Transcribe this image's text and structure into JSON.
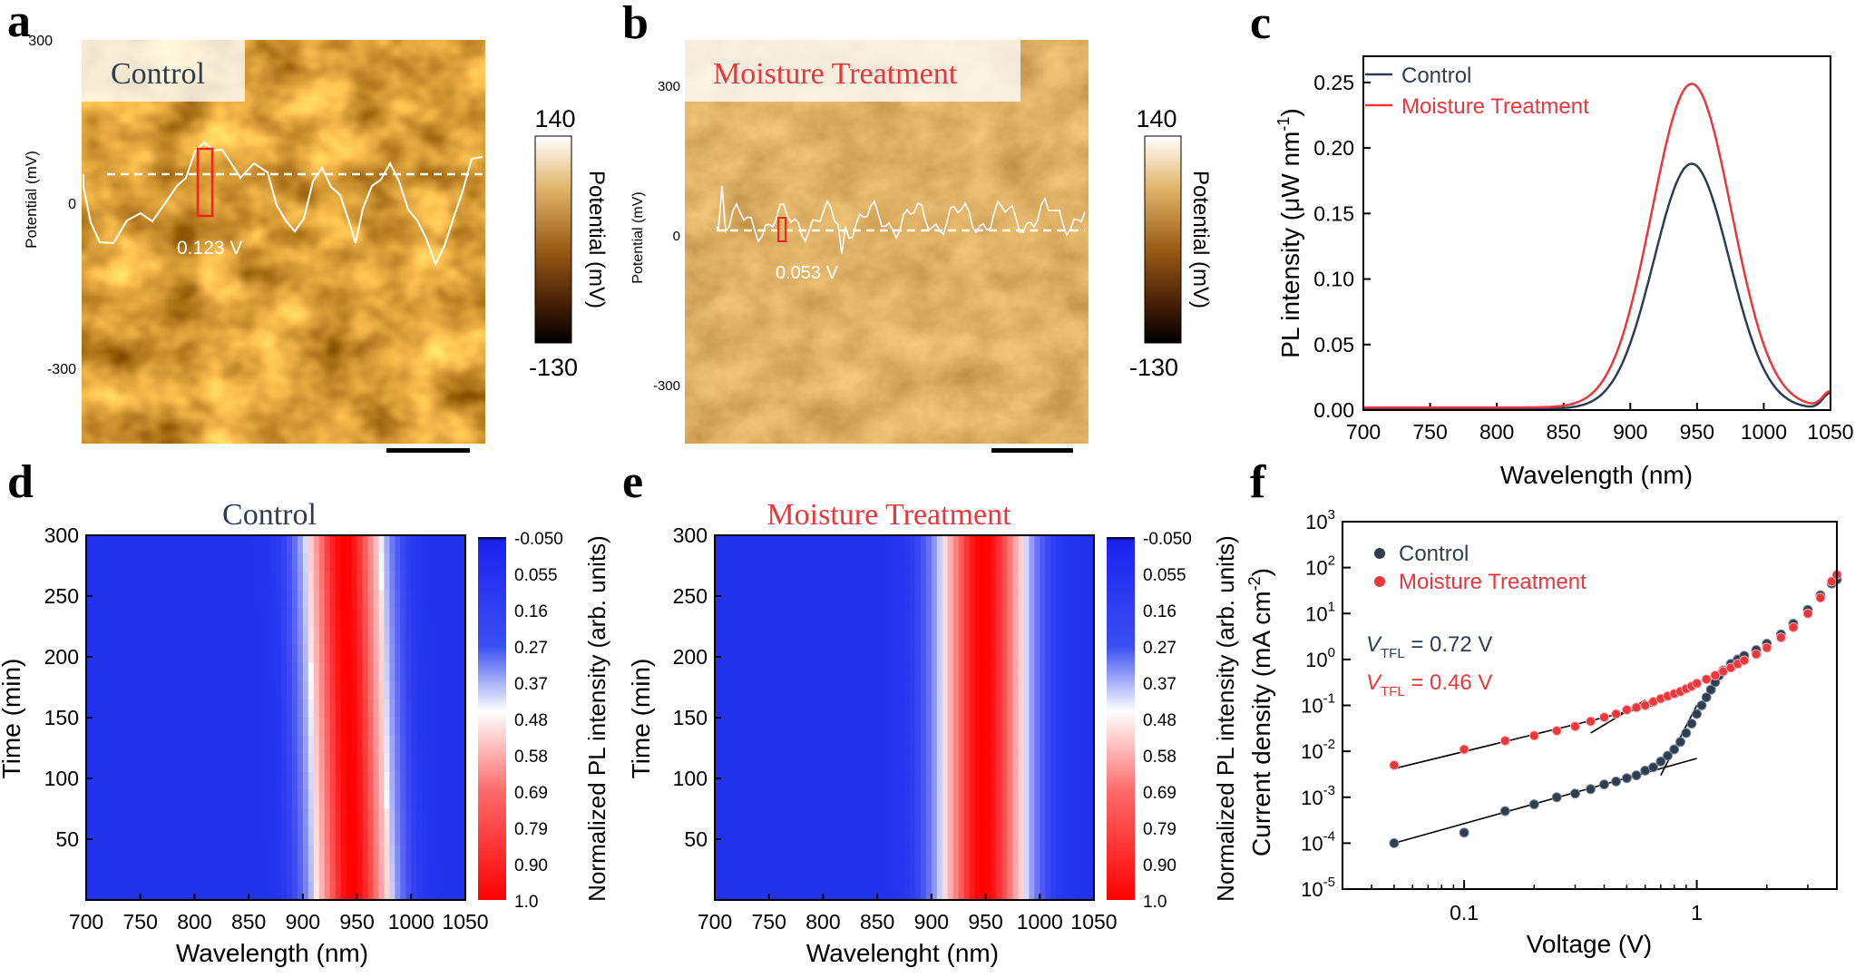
{
  "panel_labels": [
    "a",
    "b",
    "c",
    "d",
    "e",
    "f"
  ],
  "colors": {
    "control": "#2e3e50",
    "moisture": "#e8383d",
    "blue": "#2233ee",
    "red": "#ff0a0a"
  },
  "chart_data": [
    {
      "panel": "a",
      "type": "heatmap",
      "title": "Control",
      "profile_ylabel": "Potential (mV)",
      "profile_yticks": [
        "300",
        "0",
        "-300"
      ],
      "profile_step_label": "0.123 V",
      "colorbar": {
        "label": "Potential (mV)",
        "max": "140",
        "min": "-130"
      },
      "scale_bar": true
    },
    {
      "panel": "b",
      "type": "heatmap",
      "title": "Moisture Treatment",
      "profile_ylabel": "Potential (mV)",
      "profile_yticks": [
        "300",
        "0",
        "-300"
      ],
      "profile_step_label": "0.053 V",
      "colorbar": {
        "label": "Potential (mV)",
        "max": "140",
        "min": "-130"
      },
      "scale_bar": true
    },
    {
      "panel": "c",
      "type": "line",
      "xlabel": "Wavelength (nm)",
      "ylabel_main": "PL intensity (μW nm",
      "ylabel_sup": "-1",
      "ylabel_end": ")",
      "xlim": [
        700,
        1050
      ],
      "ylim": [
        0,
        0.27
      ],
      "xticks": [
        700,
        750,
        800,
        850,
        900,
        950,
        1000,
        1050
      ],
      "yticks": [
        "0.00",
        "0.05",
        "0.10",
        "0.15",
        "0.20",
        "0.25"
      ],
      "ytick_values": [
        0,
        0.05,
        0.1,
        0.15,
        0.2,
        0.25
      ],
      "legend_position": "top-left",
      "series": [
        {
          "name": "Control",
          "peak_x": 946,
          "peak_y": 0.188,
          "width": 38,
          "baseline": 0.001
        },
        {
          "name": "Moisture Treatment",
          "peak_x": 946,
          "peak_y": 0.249,
          "width": 40,
          "baseline": 0.002
        }
      ]
    },
    {
      "panel": "d",
      "type": "heatmap",
      "title": "Control",
      "xlabel": "Wavelength (nm)",
      "ylabel": "Time (min)",
      "xlim": [
        700,
        1050
      ],
      "ylim": [
        0,
        300
      ],
      "xticks": [
        "700",
        "750",
        "800",
        "850",
        "900",
        "950",
        "1000",
        "1050"
      ],
      "yticks": [
        "50",
        "100",
        "150",
        "200",
        "250",
        "300"
      ],
      "peak_center_bottom": 946,
      "peak_center_top": 938,
      "peak_width": 38,
      "colorbar": {
        "label": "Normalized PL intensity (arb. units)",
        "ticks": [
          "-0.050",
          "0.055",
          "0.16",
          "0.27",
          "0.37",
          "0.48",
          "0.58",
          "0.69",
          "0.79",
          "0.90",
          "1.0"
        ]
      }
    },
    {
      "panel": "e",
      "type": "heatmap",
      "title": "Moisture Treatment",
      "xlabel": "Wavelenght (nm)",
      "ylabel": "Time (min)",
      "xlim": [
        700,
        1050
      ],
      "ylim": [
        0,
        300
      ],
      "xticks": [
        "700",
        "750",
        "800",
        "850",
        "900",
        "950",
        "1000",
        "1050"
      ],
      "yticks": [
        "50",
        "100",
        "150",
        "200",
        "250",
        "300"
      ],
      "peak_center_bottom": 948,
      "peak_center_top": 948,
      "peak_width": 42,
      "colorbar": {
        "label": "Normalized PL intensity (arb. units)",
        "ticks": [
          "-0.050",
          "0.055",
          "0.16",
          "0.27",
          "0.37",
          "0.48",
          "0.58",
          "0.69",
          "0.79",
          "0.90",
          "1.0"
        ]
      }
    },
    {
      "panel": "f",
      "type": "scatter",
      "xlabel": "Voltage (V)",
      "ylabel_main": "Current density (mA cm",
      "ylabel_sup": "-2",
      "ylabel_end": ")",
      "xscale": "log",
      "yscale": "log",
      "xlim": [
        0.03,
        4
      ],
      "ylim": [
        1e-05,
        1000
      ],
      "xticks": [
        "0.1",
        "1"
      ],
      "xtick_values": [
        0.1,
        1
      ],
      "yticks": [
        [
          "10",
          "-5"
        ],
        [
          "10",
          "-4"
        ],
        [
          "10",
          "-3"
        ],
        [
          "10",
          "-2"
        ],
        [
          "10",
          "-1"
        ],
        [
          "10",
          "0"
        ],
        [
          "10",
          "1"
        ],
        [
          "10",
          "2"
        ],
        [
          "10",
          "3"
        ]
      ],
      "ytick_exps": [
        -5,
        -4,
        -3,
        -2,
        -1,
        0,
        1,
        2,
        3
      ],
      "legend_position": "top-left",
      "annotations": [
        {
          "v": "V",
          "sub": "TFL",
          "text": " = 0.72 V",
          "series": "Control"
        },
        {
          "v": "V",
          "sub": "TFL",
          "text": " = 0.46 V",
          "series": "Moisture Treatment"
        }
      ],
      "series": [
        {
          "name": "Control",
          "points": [
            [
              0.05,
              0.0001
            ],
            [
              0.1,
              0.00017
            ],
            [
              0.15,
              0.0005
            ],
            [
              0.2,
              0.0007
            ],
            [
              0.25,
              0.001
            ],
            [
              0.3,
              0.0012
            ],
            [
              0.35,
              0.0015
            ],
            [
              0.4,
              0.0019
            ],
            [
              0.45,
              0.0022
            ],
            [
              0.5,
              0.0026
            ],
            [
              0.55,
              0.003
            ],
            [
              0.6,
              0.0038
            ],
            [
              0.65,
              0.0045
            ],
            [
              0.7,
              0.006
            ],
            [
              0.75,
              0.008
            ],
            [
              0.8,
              0.011
            ],
            [
              0.85,
              0.016
            ],
            [
              0.9,
              0.025
            ],
            [
              0.95,
              0.04
            ],
            [
              1.0,
              0.065
            ],
            [
              1.05,
              0.1
            ],
            [
              1.1,
              0.15
            ],
            [
              1.15,
              0.22
            ],
            [
              1.2,
              0.32
            ],
            [
              1.25,
              0.45
            ],
            [
              1.3,
              0.58
            ],
            [
              1.4,
              0.8
            ],
            [
              1.5,
              1.0
            ],
            [
              1.6,
              1.2
            ],
            [
              1.8,
              1.6
            ],
            [
              2.0,
              2.2
            ],
            [
              2.3,
              3.5
            ],
            [
              2.6,
              6
            ],
            [
              3.0,
              12
            ],
            [
              3.4,
              25
            ],
            [
              3.8,
              45
            ],
            [
              4.0,
              55
            ]
          ],
          "fit_lines": [
            [
              [
                0.05,
                0.0001
              ],
              [
                1.0,
                0.007
              ]
            ],
            [
              [
                0.7,
                0.003
              ],
              [
                1.0,
                0.1
              ]
            ]
          ]
        },
        {
          "name": "Moisture Treatment",
          "points": [
            [
              0.05,
              0.005
            ],
            [
              0.1,
              0.011
            ],
            [
              0.15,
              0.017
            ],
            [
              0.2,
              0.022
            ],
            [
              0.25,
              0.028
            ],
            [
              0.3,
              0.035
            ],
            [
              0.35,
              0.045
            ],
            [
              0.4,
              0.055
            ],
            [
              0.45,
              0.065
            ],
            [
              0.5,
              0.08
            ],
            [
              0.55,
              0.09
            ],
            [
              0.6,
              0.1
            ],
            [
              0.65,
              0.12
            ],
            [
              0.7,
              0.14
            ],
            [
              0.75,
              0.16
            ],
            [
              0.8,
              0.18
            ],
            [
              0.85,
              0.2
            ],
            [
              0.9,
              0.23
            ],
            [
              0.95,
              0.26
            ],
            [
              1.0,
              0.3
            ],
            [
              1.1,
              0.37
            ],
            [
              1.2,
              0.45
            ],
            [
              1.3,
              0.55
            ],
            [
              1.4,
              0.66
            ],
            [
              1.5,
              0.8
            ],
            [
              1.6,
              0.95
            ],
            [
              1.8,
              1.3
            ],
            [
              2.0,
              1.8
            ],
            [
              2.3,
              3
            ],
            [
              2.6,
              5
            ],
            [
              3.0,
              10
            ],
            [
              3.4,
              22
            ],
            [
              3.8,
              50
            ],
            [
              4.0,
              70
            ]
          ],
          "fit_lines": [
            [
              [
                0.05,
                0.0042
              ],
              [
                0.65,
                0.1
              ]
            ],
            [
              [
                0.35,
                0.025
              ],
              [
                0.6,
                0.13
              ]
            ]
          ]
        }
      ]
    }
  ]
}
